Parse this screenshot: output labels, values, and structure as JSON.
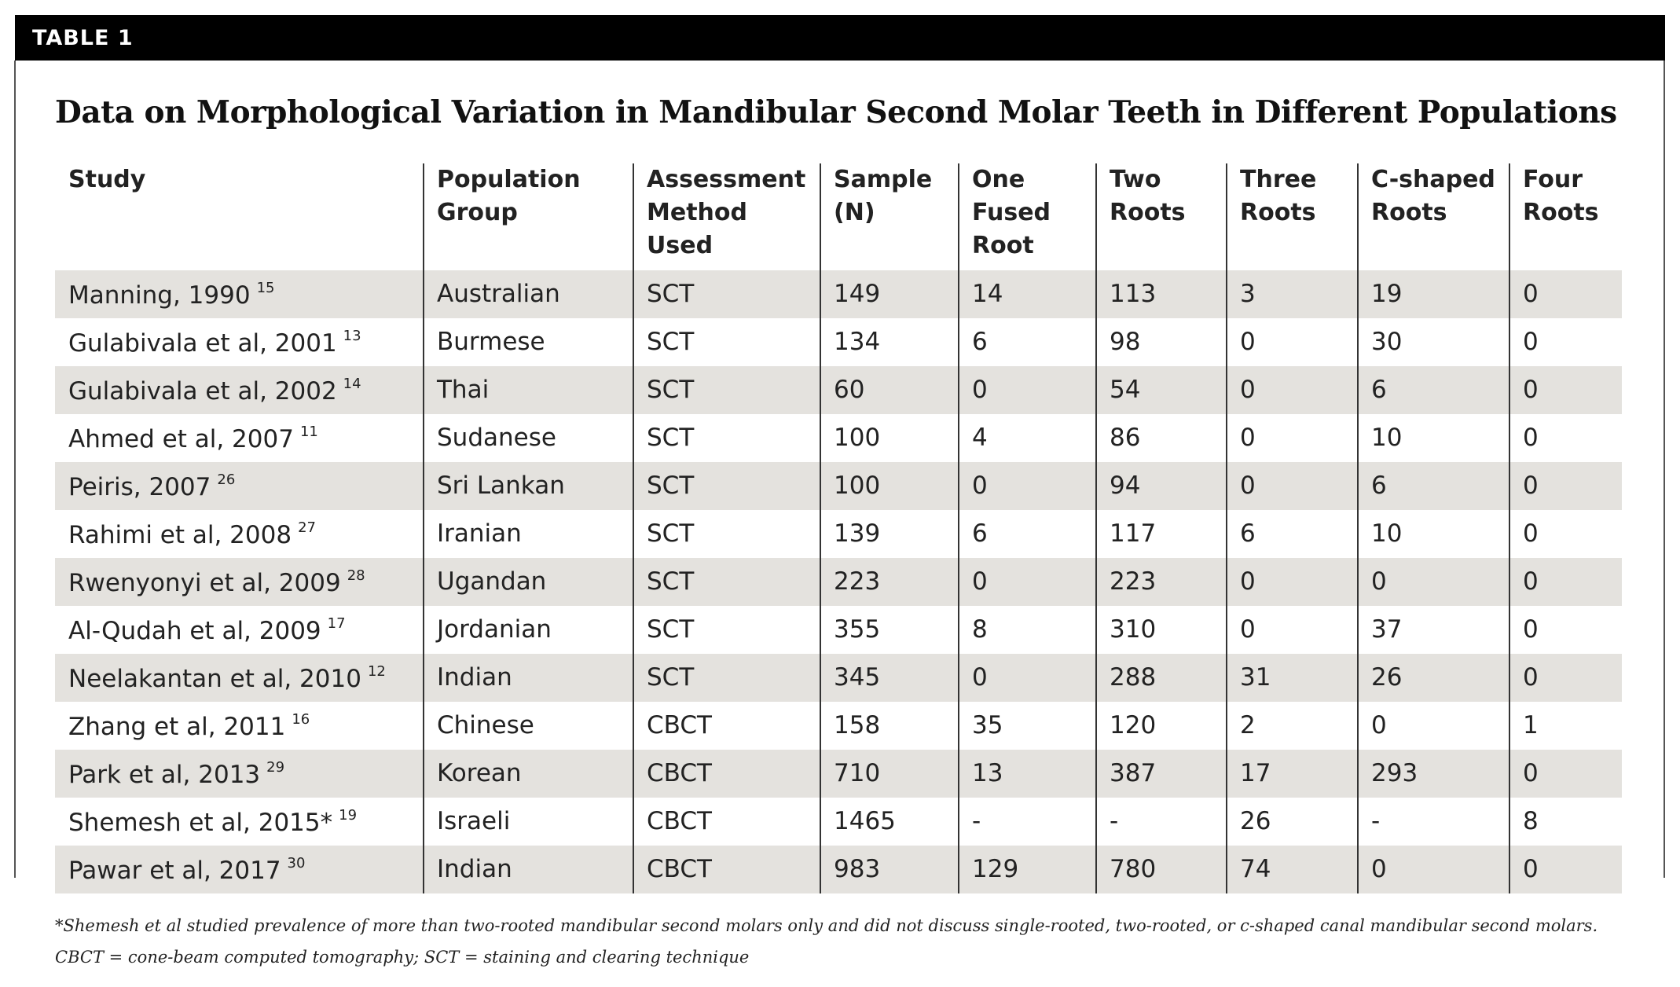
{
  "header": {
    "label": "TABLE 1"
  },
  "title": "Data on Morphological Variation in Mandibular Second Molar Teeth in Different Populations",
  "table": {
    "columns": [
      [
        "Study"
      ],
      [
        "Population",
        "Group"
      ],
      [
        "Assessment",
        "Method",
        "Used"
      ],
      [
        "Sample",
        "(N)"
      ],
      [
        "One",
        "Fused",
        "Root"
      ],
      [
        "Two",
        "Roots"
      ],
      [
        "Three",
        "Roots"
      ],
      [
        "C-shaped",
        "Roots"
      ],
      [
        "Four",
        "Roots"
      ]
    ],
    "rows": [
      [
        {
          "name": "Manning, 1990",
          "ref": "15"
        },
        "Australian",
        "SCT",
        149,
        14,
        113,
        3,
        19,
        0
      ],
      [
        {
          "name": "Gulabivala et al, 2001",
          "ref": "13"
        },
        "Burmese",
        "SCT",
        134,
        6,
        98,
        0,
        30,
        0
      ],
      [
        {
          "name": "Gulabivala et al, 2002",
          "ref": "14"
        },
        "Thai",
        "SCT",
        60,
        0,
        54,
        0,
        6,
        0
      ],
      [
        {
          "name": "Ahmed et al, 2007",
          "ref": "11"
        },
        "Sudanese",
        "SCT",
        100,
        4,
        86,
        0,
        10,
        0
      ],
      [
        {
          "name": "Peiris, 2007",
          "ref": "26"
        },
        "Sri Lankan",
        "SCT",
        100,
        0,
        94,
        0,
        6,
        0
      ],
      [
        {
          "name": "Rahimi et al, 2008",
          "ref": "27"
        },
        "Iranian",
        "SCT",
        139,
        6,
        117,
        6,
        10,
        0
      ],
      [
        {
          "name": "Rwenyonyi et al, 2009",
          "ref": "28"
        },
        "Ugandan",
        "SCT",
        223,
        0,
        223,
        0,
        0,
        0
      ],
      [
        {
          "name": "Al-Qudah et al, 2009",
          "ref": "17"
        },
        "Jordanian",
        "SCT",
        355,
        8,
        310,
        0,
        37,
        0
      ],
      [
        {
          "name": "Neelakantan et al, 2010",
          "ref": "12"
        },
        "Indian",
        "SCT",
        345,
        0,
        288,
        31,
        26,
        0
      ],
      [
        {
          "name": "Zhang et al, 2011",
          "ref": "16"
        },
        "Chinese",
        "CBCT",
        158,
        35,
        120,
        2,
        0,
        1
      ],
      [
        {
          "name": "Park et al, 2013",
          "ref": "29"
        },
        "Korean",
        "CBCT",
        710,
        13,
        387,
        17,
        293,
        0
      ],
      [
        {
          "name": "Shemesh et al, 2015*",
          "ref": "19"
        },
        "Israeli",
        "CBCT",
        1465,
        "-",
        "-",
        26,
        "-",
        8
      ],
      [
        {
          "name": "Pawar et al, 2017",
          "ref": "30"
        },
        "Indian",
        "CBCT",
        983,
        129,
        780,
        74,
        0,
        0
      ]
    ]
  },
  "footnotes": [
    "*Shemesh et al studied prevalence of more than two-rooted mandibular second molars only and did not discuss single-rooted, two-rooted, or c-shaped canal mandibular second molars.",
    "CBCT = cone-beam computed tomography; SCT = staining and clearing technique"
  ]
}
